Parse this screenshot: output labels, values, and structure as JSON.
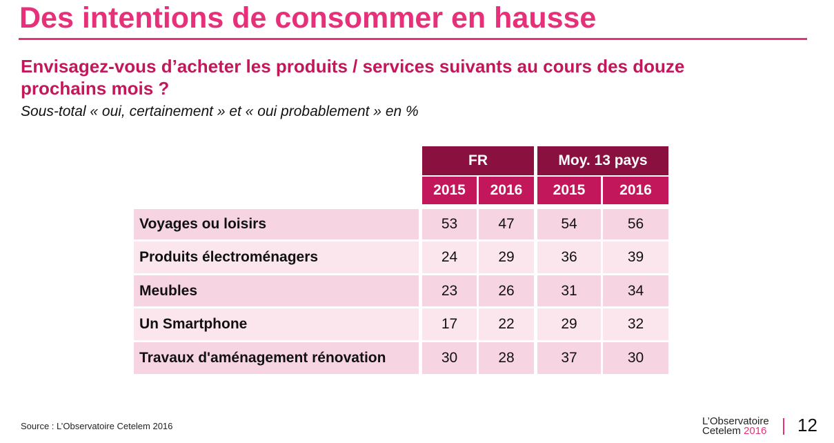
{
  "title": "Des intentions de consommer en hausse",
  "question": "Envisagez-vous d’acheter les produits / services suivants au cours des douze prochains mois ?",
  "subtitle": "Sous-total « oui, certainement » et « oui probablement » en %",
  "table": {
    "group_headers": [
      "FR",
      "Moy. 13 pays"
    ],
    "year_headers": [
      "2015",
      "2016",
      "2015",
      "2016"
    ],
    "rows": [
      {
        "label": "Voyages ou loisirs",
        "values": [
          "53",
          "47",
          "54",
          "56"
        ]
      },
      {
        "label": "Produits électroménagers",
        "values": [
          "24",
          "29",
          "36",
          "39"
        ]
      },
      {
        "label": "Meubles",
        "values": [
          "23",
          "26",
          "31",
          "34"
        ]
      },
      {
        "label": "Un Smartphone",
        "values": [
          "17",
          "22",
          "29",
          "32"
        ]
      },
      {
        "label": "Travaux d'aménagement rénovation",
        "values": [
          "30",
          "28",
          "37",
          "30"
        ]
      }
    ]
  },
  "source": "Source : L’Observatoire Cetelem 2016",
  "logo": {
    "line1": "L’Observatoire",
    "line2": "Cetelem",
    "year": "2016"
  },
  "page_number": "12",
  "colors": {
    "accent": "#e6317a",
    "header_dark": "#8a1040",
    "header_mid": "#c2185b",
    "row_a": "#f7d4e2",
    "row_b": "#fbe6ee"
  }
}
